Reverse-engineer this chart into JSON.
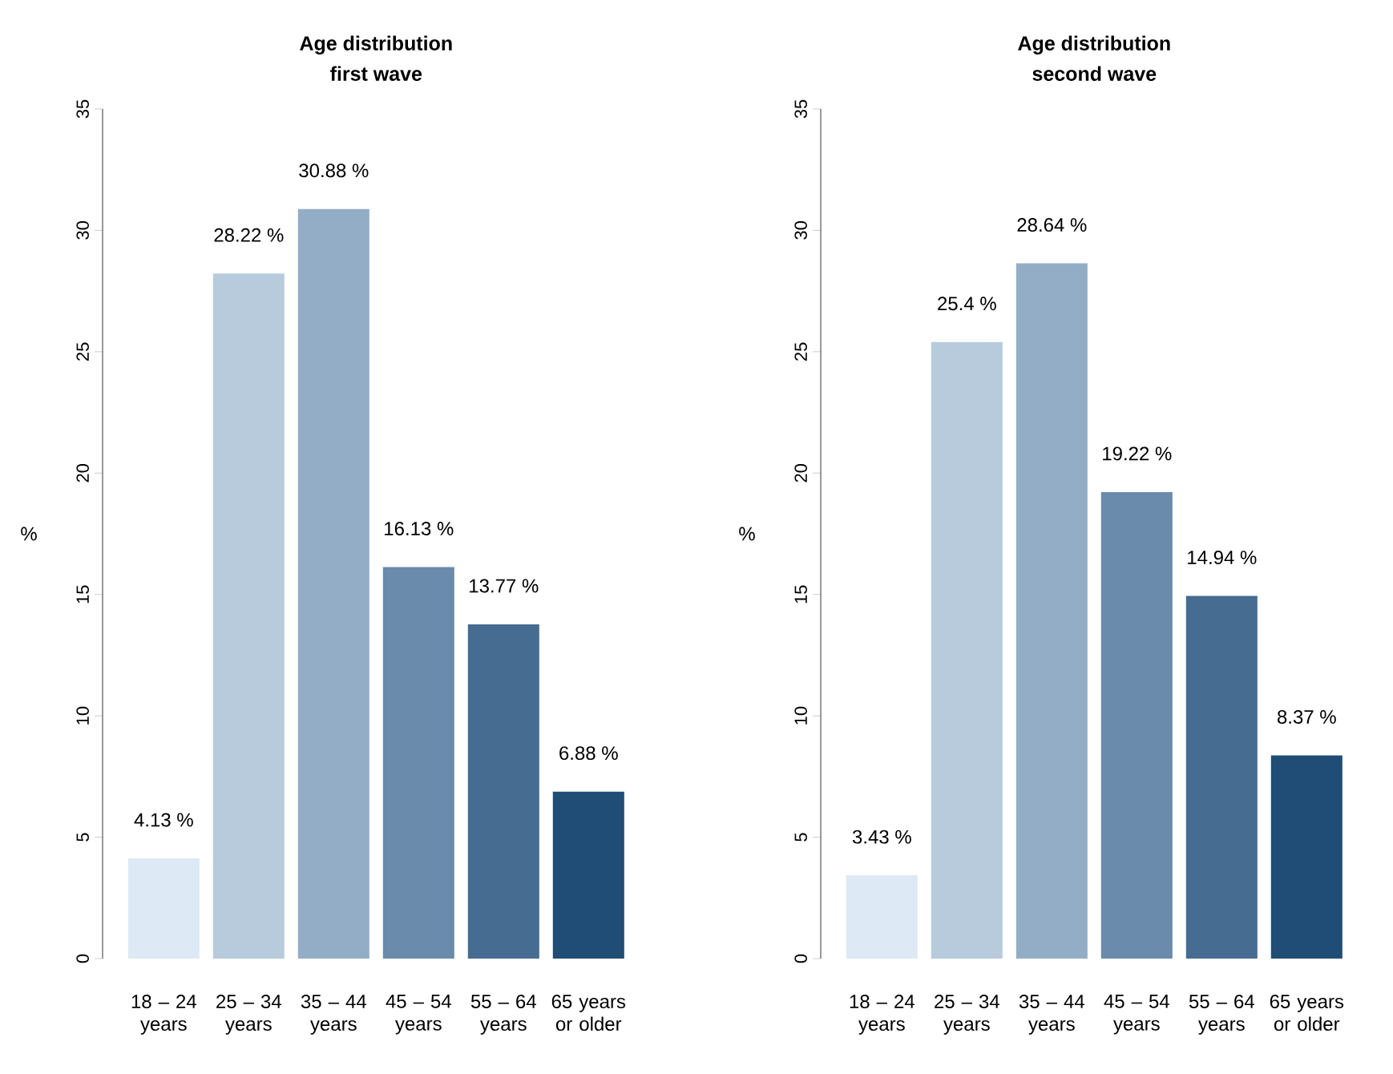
{
  "chart_data": [
    {
      "type": "bar",
      "title": "Age distribution",
      "subtitle": "first wave",
      "ylabel": "%",
      "categories": [
        "18 – 24 years",
        "25 – 34 years",
        "35 – 44 years",
        "45 – 54 years",
        "55 – 64 years",
        "65 years or older"
      ],
      "values": [
        4.13,
        28.22,
        30.88,
        16.13,
        13.77,
        6.88
      ],
      "colors": [
        "#dde9f4",
        "#b8cbdc",
        "#94adc6",
        "#6a8bab",
        "#466c91",
        "#1f4d76"
      ],
      "value_labels": [
        "4.13 %",
        "28.22 %",
        "30.88 %",
        "16.13 %",
        "13.77 %",
        "6.88 %"
      ],
      "ylim": [
        0,
        35
      ],
      "yticks": [
        0,
        5,
        10,
        15,
        20,
        25,
        30,
        35
      ]
    },
    {
      "type": "bar",
      "title": "Age distribution",
      "subtitle": "second wave",
      "ylabel": "%",
      "categories": [
        "18 – 24 years",
        "25 – 34 years",
        "35 – 44 years",
        "45 – 54 years",
        "55 – 64 years",
        "65 years or older"
      ],
      "values": [
        3.43,
        25.4,
        28.64,
        19.22,
        14.94,
        8.37
      ],
      "colors": [
        "#dde9f4",
        "#b8cbdc",
        "#94adc6",
        "#6a8bab",
        "#466c91",
        "#1f4d76"
      ],
      "value_labels": [
        "3.43 %",
        "25.4 %",
        "28.64 %",
        "19.22 %",
        "14.94 %",
        "8.37 %"
      ],
      "ylim": [
        0,
        35
      ],
      "yticks": [
        0,
        5,
        10,
        15,
        20,
        25,
        30,
        35
      ]
    }
  ]
}
